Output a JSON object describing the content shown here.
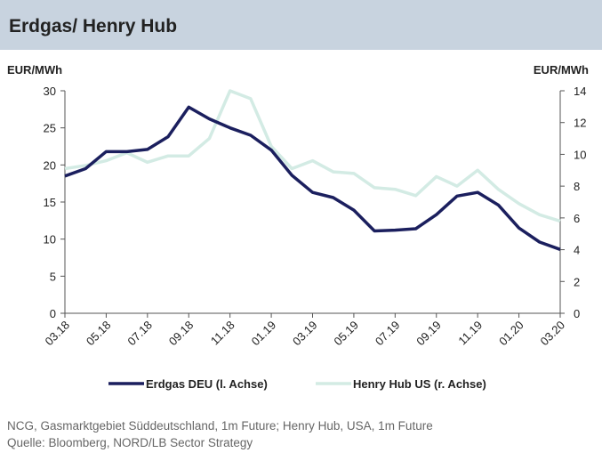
{
  "chart_data": {
    "type": "line",
    "title": "Erdgas/ Henry Hub",
    "ylabel": "EUR/MWh",
    "y2label": "EUR/MWh",
    "categories": [
      "03.18",
      null,
      "05.18",
      null,
      "07.18",
      null,
      "09.18",
      null,
      "11.18",
      null,
      "01.19",
      null,
      "03.19",
      null,
      "05.19",
      null,
      "07.19",
      null,
      "09.19",
      null,
      "11.19",
      null,
      "01.20",
      null,
      "03.20"
    ],
    "series": [
      {
        "name": "Erdgas DEU (l. Achse)",
        "color": "#1b1f5e",
        "values": [
          18.5,
          19.5,
          21.8,
          21.8,
          22.1,
          23.8,
          27.8,
          26.2,
          25.0,
          24.0,
          22.0,
          18.6,
          16.3,
          15.6,
          13.9,
          11.1,
          11.2,
          11.4,
          13.3,
          15.8,
          16.3,
          14.6,
          11.5,
          9.6,
          8.6
        ]
      },
      {
        "name": "Henry Hub US (r. Achse)",
        "color": "#d3ebe4",
        "axis": "y2",
        "values": [
          9.1,
          9.3,
          9.6,
          10.1,
          9.5,
          9.9,
          9.9,
          11.0,
          14.0,
          13.5,
          10.5,
          9.1,
          9.6,
          8.9,
          8.8,
          7.9,
          7.8,
          7.4,
          8.6,
          8.0,
          9.0,
          7.8,
          6.9,
          6.2,
          5.8
        ]
      }
    ],
    "ylim": [
      0,
      30
    ],
    "yticks": [
      0,
      5,
      10,
      15,
      20,
      25,
      30
    ],
    "y2lim": [
      0,
      14
    ],
    "y2ticks": [
      0,
      2,
      4,
      6,
      8,
      10,
      12,
      14
    ],
    "legend": "bottom",
    "notes": [
      "NCG, Gasmarktgebiet Süddeutschland, 1m Future; Henry Hub, USA, 1m Future",
      "Quelle: Bloomberg, NORD/LB Sector Strategy"
    ]
  }
}
